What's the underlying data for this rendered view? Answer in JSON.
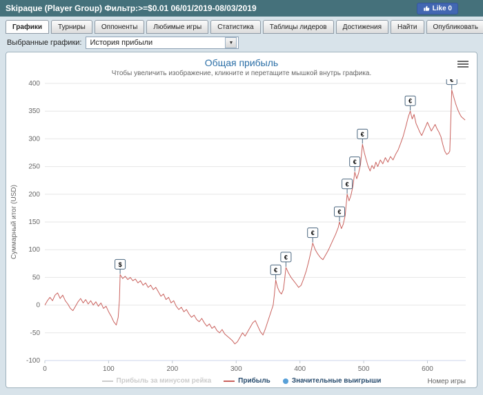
{
  "header": {
    "title": "Skipaque (Player Group) Фильтр:>=$0.01 06/01/2019-08/03/2019",
    "like_label": "Like 0"
  },
  "tabs": [
    {
      "label": "Графики",
      "active": true
    },
    {
      "label": "Турниры",
      "active": false
    },
    {
      "label": "Оппоненты",
      "active": false
    },
    {
      "label": "Любимые игры",
      "active": false
    },
    {
      "label": "Статистика",
      "active": false
    },
    {
      "label": "Таблицы лидеров",
      "active": false
    },
    {
      "label": "Достижения",
      "active": false
    },
    {
      "label": "Найти",
      "active": false
    },
    {
      "label": "Опубликовать",
      "active": false
    }
  ],
  "controls": {
    "label": "Выбранные графики:",
    "selected_option": "История прибыли"
  },
  "icons": {
    "dropdown_arrow": "▼",
    "menu": "≡",
    "like_thumb": "thumbs-up"
  },
  "colors": {
    "header_bg": "#45717b",
    "page_bg": "#d8e3ea",
    "title_blue": "#2a6ea6",
    "profit_line": "#c9605c",
    "significant_win": "#58a0d8",
    "flag_border": "#4a667f",
    "like_blue": "#4267b2"
  },
  "chart_data": {
    "type": "line",
    "title": "Общая прибыль",
    "subtitle": "Чтобы увеличить изображение, кликните и перетащите мышкой внутрь графика.",
    "ylabel": "Суммарный итог (USD)",
    "xlabel": "Номер игры",
    "xlim": [
      0,
      660
    ],
    "ylim": [
      -100,
      400
    ],
    "xticks": [
      0,
      100,
      200,
      300,
      400,
      500,
      600
    ],
    "yticks": [
      -100,
      -50,
      0,
      50,
      100,
      150,
      200,
      250,
      300,
      350,
      400
    ],
    "grid": true,
    "legend": [
      {
        "label": "Прибыль за минусом рейка",
        "type": "line",
        "color": "#cccccc",
        "disabled": true
      },
      {
        "label": "Прибыль",
        "type": "line",
        "color": "#c9605c",
        "disabled": false
      },
      {
        "label": "Значительные выигрыши",
        "type": "marker",
        "color": "#58a0d8",
        "disabled": false
      }
    ],
    "flags": [
      {
        "x": 118,
        "y": 55,
        "symbol": "$"
      },
      {
        "x": 362,
        "y": 45,
        "symbol": "€"
      },
      {
        "x": 378,
        "y": 68,
        "symbol": "€"
      },
      {
        "x": 420,
        "y": 112,
        "symbol": "€"
      },
      {
        "x": 462,
        "y": 150,
        "symbol": "€"
      },
      {
        "x": 474,
        "y": 200,
        "symbol": "€"
      },
      {
        "x": 486,
        "y": 240,
        "symbol": "€"
      },
      {
        "x": 498,
        "y": 290,
        "symbol": "€"
      },
      {
        "x": 573,
        "y": 350,
        "symbol": "€"
      },
      {
        "x": 638,
        "y": 388,
        "symbol": "€"
      }
    ],
    "series": [
      {
        "name": "Прибыль",
        "color": "#c9605c",
        "points": [
          [
            0,
            0
          ],
          [
            4,
            8
          ],
          [
            8,
            14
          ],
          [
            12,
            8
          ],
          [
            16,
            18
          ],
          [
            20,
            22
          ],
          [
            24,
            12
          ],
          [
            28,
            18
          ],
          [
            32,
            8
          ],
          [
            36,
            2
          ],
          [
            40,
            -6
          ],
          [
            44,
            -10
          ],
          [
            48,
            -2
          ],
          [
            52,
            6
          ],
          [
            56,
            12
          ],
          [
            60,
            4
          ],
          [
            64,
            10
          ],
          [
            68,
            2
          ],
          [
            72,
            8
          ],
          [
            76,
            0
          ],
          [
            80,
            6
          ],
          [
            84,
            -2
          ],
          [
            88,
            4
          ],
          [
            92,
            -6
          ],
          [
            96,
            -2
          ],
          [
            100,
            -12
          ],
          [
            104,
            -20
          ],
          [
            108,
            -30
          ],
          [
            112,
            -36
          ],
          [
            115,
            -22
          ],
          [
            117,
            10
          ],
          [
            118,
            55
          ],
          [
            122,
            48
          ],
          [
            126,
            52
          ],
          [
            130,
            46
          ],
          [
            134,
            50
          ],
          [
            138,
            44
          ],
          [
            142,
            47
          ],
          [
            146,
            40
          ],
          [
            150,
            44
          ],
          [
            154,
            36
          ],
          [
            158,
            40
          ],
          [
            162,
            32
          ],
          [
            166,
            36
          ],
          [
            170,
            28
          ],
          [
            174,
            32
          ],
          [
            178,
            24
          ],
          [
            182,
            16
          ],
          [
            186,
            20
          ],
          [
            190,
            10
          ],
          [
            194,
            14
          ],
          [
            198,
            4
          ],
          [
            202,
            8
          ],
          [
            206,
            -2
          ],
          [
            210,
            -8
          ],
          [
            214,
            -4
          ],
          [
            218,
            -12
          ],
          [
            222,
            -8
          ],
          [
            226,
            -16
          ],
          [
            230,
            -22
          ],
          [
            234,
            -18
          ],
          [
            238,
            -26
          ],
          [
            242,
            -30
          ],
          [
            246,
            -24
          ],
          [
            250,
            -32
          ],
          [
            254,
            -38
          ],
          [
            258,
            -34
          ],
          [
            262,
            -42
          ],
          [
            266,
            -38
          ],
          [
            270,
            -46
          ],
          [
            274,
            -50
          ],
          [
            278,
            -44
          ],
          [
            282,
            -52
          ],
          [
            286,
            -56
          ],
          [
            290,
            -60
          ],
          [
            294,
            -64
          ],
          [
            298,
            -70
          ],
          [
            302,
            -66
          ],
          [
            306,
            -58
          ],
          [
            310,
            -50
          ],
          [
            314,
            -56
          ],
          [
            318,
            -48
          ],
          [
            322,
            -40
          ],
          [
            326,
            -32
          ],
          [
            330,
            -28
          ],
          [
            334,
            -38
          ],
          [
            338,
            -48
          ],
          [
            342,
            -54
          ],
          [
            346,
            -42
          ],
          [
            350,
            -28
          ],
          [
            354,
            -14
          ],
          [
            358,
            0
          ],
          [
            360,
            20
          ],
          [
            362,
            45
          ],
          [
            365,
            32
          ],
          [
            368,
            24
          ],
          [
            371,
            20
          ],
          [
            374,
            28
          ],
          [
            376,
            46
          ],
          [
            378,
            68
          ],
          [
            382,
            58
          ],
          [
            386,
            50
          ],
          [
            390,
            44
          ],
          [
            394,
            38
          ],
          [
            398,
            32
          ],
          [
            402,
            36
          ],
          [
            406,
            48
          ],
          [
            410,
            62
          ],
          [
            414,
            80
          ],
          [
            418,
            100
          ],
          [
            420,
            112
          ],
          [
            424,
            100
          ],
          [
            428,
            92
          ],
          [
            432,
            86
          ],
          [
            436,
            82
          ],
          [
            440,
            90
          ],
          [
            444,
            98
          ],
          [
            448,
            108
          ],
          [
            452,
            118
          ],
          [
            456,
            128
          ],
          [
            460,
            140
          ],
          [
            462,
            150
          ],
          [
            465,
            138
          ],
          [
            468,
            146
          ],
          [
            471,
            162
          ],
          [
            474,
            200
          ],
          [
            477,
            188
          ],
          [
            480,
            198
          ],
          [
            483,
            214
          ],
          [
            486,
            240
          ],
          [
            489,
            228
          ],
          [
            492,
            238
          ],
          [
            495,
            254
          ],
          [
            498,
            290
          ],
          [
            501,
            275
          ],
          [
            504,
            262
          ],
          [
            507,
            250
          ],
          [
            510,
            242
          ],
          [
            513,
            252
          ],
          [
            516,
            246
          ],
          [
            519,
            258
          ],
          [
            522,
            250
          ],
          [
            526,
            262
          ],
          [
            530,
            255
          ],
          [
            534,
            266
          ],
          [
            538,
            258
          ],
          [
            542,
            268
          ],
          [
            546,
            262
          ],
          [
            550,
            272
          ],
          [
            554,
            280
          ],
          [
            558,
            292
          ],
          [
            562,
            305
          ],
          [
            566,
            322
          ],
          [
            570,
            340
          ],
          [
            573,
            350
          ],
          [
            576,
            336
          ],
          [
            579,
            344
          ],
          [
            582,
            328
          ],
          [
            585,
            320
          ],
          [
            588,
            312
          ],
          [
            591,
            306
          ],
          [
            594,
            314
          ],
          [
            597,
            322
          ],
          [
            600,
            330
          ],
          [
            603,
            322
          ],
          [
            606,
            314
          ],
          [
            609,
            320
          ],
          [
            612,
            326
          ],
          [
            615,
            318
          ],
          [
            618,
            312
          ],
          [
            621,
            304
          ],
          [
            624,
            290
          ],
          [
            627,
            278
          ],
          [
            630,
            272
          ],
          [
            633,
            274
          ],
          [
            635,
            278
          ],
          [
            638,
            388
          ],
          [
            641,
            376
          ],
          [
            644,
            364
          ],
          [
            647,
            354
          ],
          [
            650,
            346
          ],
          [
            653,
            340
          ],
          [
            656,
            337
          ],
          [
            659,
            334
          ]
        ]
      }
    ]
  }
}
